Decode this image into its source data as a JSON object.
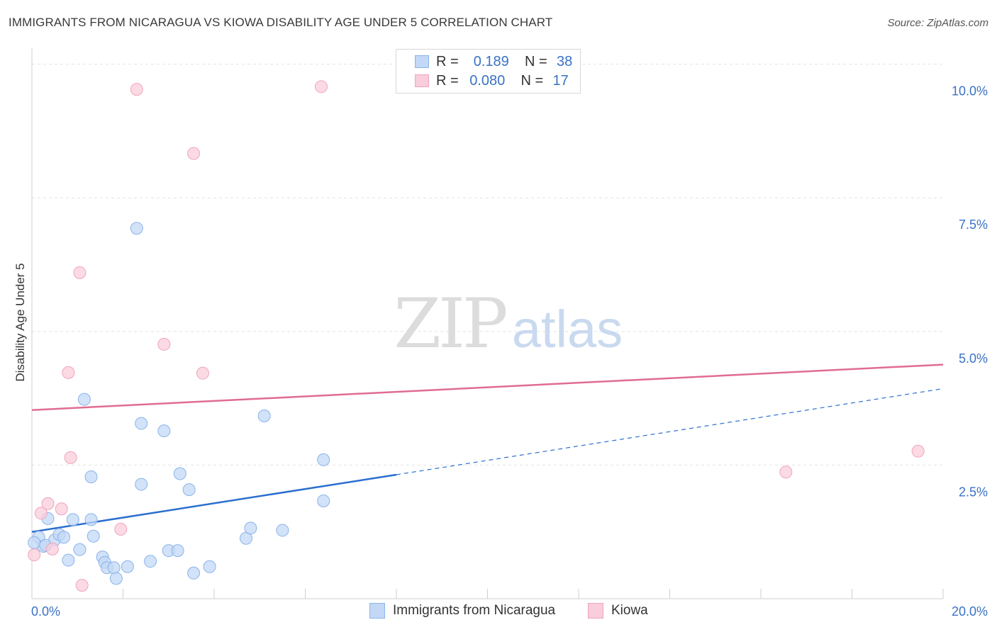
{
  "chart_data": {
    "type": "scatter",
    "title": "IMMIGRANTS FROM NICARAGUA VS KIOWA DISABILITY AGE UNDER 5 CORRELATION CHART",
    "source": "Source: ZipAtlas.com",
    "xlabel": "",
    "ylabel": "Disability Age Under 5",
    "xlim": [
      0,
      20
    ],
    "ylim": [
      0,
      10.3
    ],
    "x_tick_labels": [
      "0.0%",
      "20.0%"
    ],
    "y_ticks": [
      {
        "value": 2.5,
        "label": "2.5%"
      },
      {
        "value": 5.0,
        "label": "5.0%"
      },
      {
        "value": 7.5,
        "label": "7.5%"
      },
      {
        "value": 10.0,
        "label": "10.0%"
      }
    ],
    "watermark": {
      "zip": "ZIP",
      "atlas": "atlas"
    },
    "legend": {
      "rows": [
        {
          "r_label": "R =",
          "r_value": "0.189",
          "n_label": "N =",
          "n_value": "38"
        },
        {
          "r_label": "R =",
          "r_value": "0.080",
          "n_label": "N =",
          "n_value": "17"
        }
      ]
    },
    "series": [
      {
        "name": "Immigrants from Nicaragua",
        "color": "#8ab4ea",
        "fill": "#c3d8f5",
        "line_color": "#2a6fcf",
        "trend": {
          "x0": 0.0,
          "y0": 1.25,
          "x1": 8.0,
          "y1": 2.32,
          "dash_x1": 20.0,
          "dash_y1": 3.93
        },
        "points": [
          [
            0.15,
            1.15
          ],
          [
            0.25,
            0.98
          ],
          [
            0.35,
            1.5
          ],
          [
            0.5,
            1.1
          ],
          [
            0.6,
            1.2
          ],
          [
            0.7,
            1.15
          ],
          [
            0.8,
            0.72
          ],
          [
            0.9,
            1.48
          ],
          [
            1.05,
            0.92
          ],
          [
            1.15,
            3.73
          ],
          [
            1.3,
            1.48
          ],
          [
            1.3,
            2.28
          ],
          [
            1.35,
            1.17
          ],
          [
            1.55,
            0.78
          ],
          [
            1.6,
            0.68
          ],
          [
            1.65,
            0.58
          ],
          [
            1.8,
            0.58
          ],
          [
            1.85,
            0.38
          ],
          [
            2.1,
            0.6
          ],
          [
            2.3,
            6.93
          ],
          [
            2.4,
            3.28
          ],
          [
            2.4,
            2.14
          ],
          [
            2.6,
            0.7
          ],
          [
            2.9,
            3.14
          ],
          [
            3.0,
            0.9
          ],
          [
            3.2,
            0.9
          ],
          [
            3.25,
            2.34
          ],
          [
            3.45,
            2.04
          ],
          [
            3.55,
            0.48
          ],
          [
            3.9,
            0.6
          ],
          [
            4.7,
            1.13
          ],
          [
            4.8,
            1.32
          ],
          [
            5.1,
            3.42
          ],
          [
            5.5,
            1.28
          ],
          [
            6.4,
            2.6
          ],
          [
            6.4,
            1.83
          ],
          [
            0.05,
            1.05
          ],
          [
            0.3,
            1.0
          ]
        ]
      },
      {
        "name": "Kiowa",
        "color": "#f0a4bd",
        "fill": "#f9cddb",
        "line_color": "#e06c93",
        "trend": {
          "x0": 0.0,
          "y0": 3.53,
          "x1": 20.0,
          "y1": 4.38
        },
        "points": [
          [
            0.05,
            0.82
          ],
          [
            0.2,
            1.6
          ],
          [
            0.35,
            1.78
          ],
          [
            0.45,
            0.93
          ],
          [
            0.65,
            1.68
          ],
          [
            0.8,
            4.23
          ],
          [
            0.85,
            2.64
          ],
          [
            1.05,
            6.1
          ],
          [
            1.1,
            0.25
          ],
          [
            1.95,
            1.3
          ],
          [
            2.3,
            9.53
          ],
          [
            2.9,
            4.76
          ],
          [
            3.55,
            8.33
          ],
          [
            3.75,
            4.22
          ],
          [
            6.35,
            9.58
          ],
          [
            16.55,
            2.37
          ],
          [
            19.45,
            2.76
          ]
        ]
      }
    ]
  }
}
